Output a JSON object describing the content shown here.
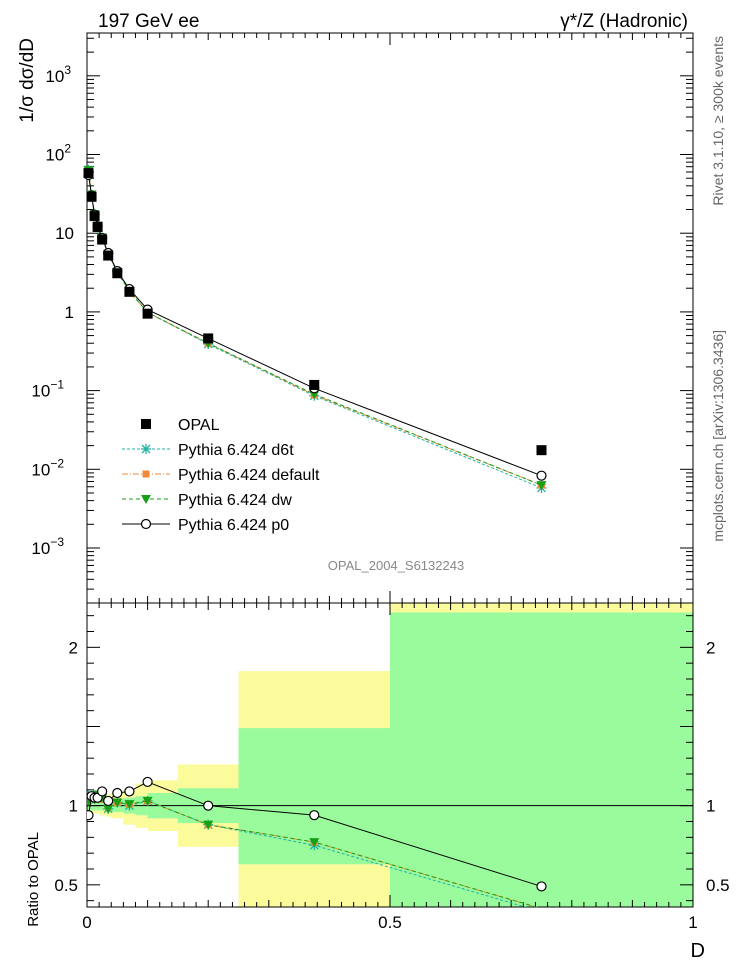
{
  "header": {
    "left_title": "197 GeV ee",
    "right_title": "γ*/Z (Hadronic)",
    "ylabel_main": "1/σ dσ/dD",
    "ylabel_ratio": "Ratio to OPAL",
    "xlabel": "D",
    "side_text_top": "Rivet 3.1.10, ≥ 300k events",
    "side_text_bottom": "mcplots.cern.ch [arXiv:1306.3436]",
    "analysis_id": "OPAL_2004_S6132243"
  },
  "legend": {
    "entries": [
      {
        "label": "OPAL",
        "color": "#000000",
        "marker": "square"
      },
      {
        "label": "Pythia 6.424 d6t",
        "color": "#22b2a6",
        "marker": "star"
      },
      {
        "label": "Pythia 6.424 default",
        "color": "#f08a3a",
        "marker": "square"
      },
      {
        "label": "Pythia 6.424 dw",
        "color": "#16a016",
        "marker": "triangle-down"
      },
      {
        "label": "Pythia 6.424 p0",
        "color": "#000000",
        "marker": "open-circle"
      }
    ]
  },
  "chart_data": [
    {
      "type": "line",
      "panel": "main",
      "yscale": "log",
      "xlim": [
        0,
        1
      ],
      "ylim": [
        0.0002,
        3500
      ],
      "yticks": [
        {
          "value": 0.001,
          "label": "10",
          "exp": "−3"
        },
        {
          "value": 0.01,
          "label": "10",
          "exp": "−2"
        },
        {
          "value": 0.1,
          "label": "10",
          "exp": "−1"
        },
        {
          "value": 1,
          "label": "1",
          "exp": ""
        },
        {
          "value": 10,
          "label": "10",
          "exp": ""
        },
        {
          "value": 100,
          "label": "10",
          "exp": "2"
        },
        {
          "value": 1000,
          "label": "10",
          "exp": "3"
        }
      ],
      "x": [
        0.0025,
        0.0075,
        0.0125,
        0.0175,
        0.025,
        0.035,
        0.05,
        0.07,
        0.1,
        0.2,
        0.375,
        0.75
      ],
      "series": [
        {
          "name": "OPAL",
          "color": "#000000",
          "marker": "square",
          "values": [
            58,
            29,
            16.5,
            12,
            8.3,
            5.2,
            3.1,
            1.8,
            0.95,
            0.46,
            0.118,
            0.0175
          ]
        },
        {
          "name": "Pythia 6.424 d6t",
          "color": "#22b2a6",
          "marker": "star",
          "values": [
            64,
            31,
            17.5,
            12.5,
            8.8,
            5.5,
            3.25,
            1.85,
            0.99,
            0.39,
            0.086,
            0.0058
          ]
        },
        {
          "name": "Pythia 6.424 default",
          "color": "#f08a3a",
          "marker": "square",
          "values": [
            63,
            31,
            17.5,
            12.5,
            8.7,
            5.4,
            3.2,
            1.82,
            0.98,
            0.4,
            0.088,
            0.0063
          ]
        },
        {
          "name": "Pythia 6.424 dw",
          "color": "#16a016",
          "marker": "triangle-down",
          "values": [
            63,
            31,
            17.5,
            12.5,
            8.8,
            5.4,
            3.2,
            1.83,
            0.98,
            0.4,
            0.09,
            0.0063
          ]
        },
        {
          "name": "Pythia 6.424 p0",
          "color": "#000000",
          "marker": "open-circle",
          "values": [
            55,
            30,
            17.2,
            12.2,
            8.7,
            5.6,
            3.3,
            1.95,
            1.07,
            0.46,
            0.107,
            0.0083
          ]
        }
      ]
    },
    {
      "type": "line",
      "panel": "ratio",
      "xlim": [
        0,
        1
      ],
      "ylim": [
        0.36,
        2.28
      ],
      "yticks": [
        0.5,
        1,
        2
      ],
      "xticks": [
        0,
        0.5,
        1
      ],
      "xticklabels": [
        "0",
        "0.5",
        "1"
      ],
      "bands": [
        {
          "x0": 0,
          "x1": 0.005,
          "green": [
            0.97,
            1.03
          ],
          "yellow": [
            0.95,
            1.05
          ]
        },
        {
          "x0": 0.005,
          "x1": 0.01,
          "green": [
            0.97,
            1.03
          ],
          "yellow": [
            0.95,
            1.05
          ]
        },
        {
          "x0": 0.01,
          "x1": 0.015,
          "green": [
            0.97,
            1.03
          ],
          "yellow": [
            0.95,
            1.05
          ]
        },
        {
          "x0": 0.015,
          "x1": 0.02,
          "green": [
            0.97,
            1.03
          ],
          "yellow": [
            0.95,
            1.05
          ]
        },
        {
          "x0": 0.02,
          "x1": 0.03,
          "green": [
            0.97,
            1.03
          ],
          "yellow": [
            0.94,
            1.06
          ]
        },
        {
          "x0": 0.03,
          "x1": 0.04,
          "green": [
            0.96,
            1.04
          ],
          "yellow": [
            0.93,
            1.07
          ]
        },
        {
          "x0": 0.04,
          "x1": 0.06,
          "green": [
            0.96,
            1.04
          ],
          "yellow": [
            0.92,
            1.08
          ]
        },
        {
          "x0": 0.06,
          "x1": 0.08,
          "green": [
            0.95,
            1.05
          ],
          "yellow": [
            0.88,
            1.1
          ]
        },
        {
          "x0": 0.08,
          "x1": 0.1,
          "green": [
            0.94,
            1.06
          ],
          "yellow": [
            0.86,
            1.14
          ]
        },
        {
          "x0": 0.1,
          "x1": 0.15,
          "green": [
            0.92,
            1.08
          ],
          "yellow": [
            0.84,
            1.16
          ]
        },
        {
          "x0": 0.15,
          "x1": 0.25,
          "green": [
            0.89,
            1.11
          ],
          "yellow": [
            0.74,
            1.26
          ]
        },
        {
          "x0": 0.25,
          "x1": 0.5,
          "green": [
            0.63,
            1.49
          ],
          "yellow": [
            0.36,
            1.85
          ]
        },
        {
          "x0": 0.5,
          "x1": 1.0,
          "green": [
            0.36,
            2.22
          ],
          "yellow": [
            0.36,
            2.28
          ]
        }
      ],
      "x": [
        0.0025,
        0.0075,
        0.0125,
        0.0175,
        0.025,
        0.035,
        0.05,
        0.07,
        0.1,
        0.2,
        0.375,
        0.75
      ],
      "series": [
        {
          "name": "Pythia 6.424 d6t",
          "color": "#22b2a6",
          "marker": "star",
          "values": [
            1.04,
            1.07,
            1.05,
            1.06,
            1.05,
            0.98,
            1.02,
            1.0,
            1.03,
            0.88,
            0.75,
            0.33
          ]
        },
        {
          "name": "Pythia 6.424 default",
          "color": "#f08a3a",
          "marker": "square",
          "values": [
            1.03,
            1.06,
            1.05,
            1.06,
            1.04,
            0.99,
            1.02,
            1.01,
            1.03,
            0.88,
            0.77,
            0.35
          ]
        },
        {
          "name": "Pythia 6.424 dw",
          "color": "#16a016",
          "marker": "triangle-down",
          "values": [
            1.03,
            1.06,
            1.04,
            1.07,
            1.05,
            0.98,
            1.02,
            1.01,
            1.03,
            0.88,
            0.77,
            0.35
          ]
        },
        {
          "name": "Pythia 6.424 p0",
          "color": "#000000",
          "marker": "open-circle",
          "values": [
            0.94,
            1.06,
            1.05,
            1.05,
            1.09,
            1.03,
            1.08,
            1.09,
            1.15,
            1.0,
            0.94,
            0.49
          ]
        }
      ]
    }
  ]
}
